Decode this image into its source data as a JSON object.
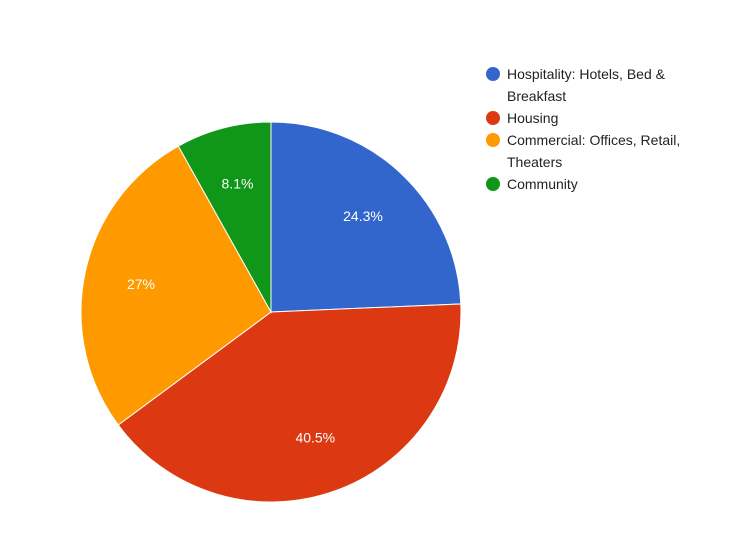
{
  "chart_data": {
    "type": "pie",
    "title": "",
    "categories": [
      "Hospitality: Hotels, Bed & Breakfast",
      "Housing",
      "Commercial: Offices, Retail, Theaters",
      "Community"
    ],
    "values": [
      24.3,
      40.5,
      27,
      8.1
    ],
    "value_labels": [
      "24.3%",
      "40.5%",
      "27%",
      "8.1%"
    ],
    "colors": [
      "#3366cc",
      "#dc3912",
      "#ff9900",
      "#109618"
    ],
    "legend_lines": [
      [
        "Hospitality: Hotels, Bed &",
        "Breakfast"
      ],
      [
        "Housing"
      ],
      [
        "Commercial: Offices, Retail,",
        "Theaters"
      ],
      [
        "Community"
      ]
    ],
    "legend_position": "right",
    "start_angle": "top, clockwise"
  }
}
